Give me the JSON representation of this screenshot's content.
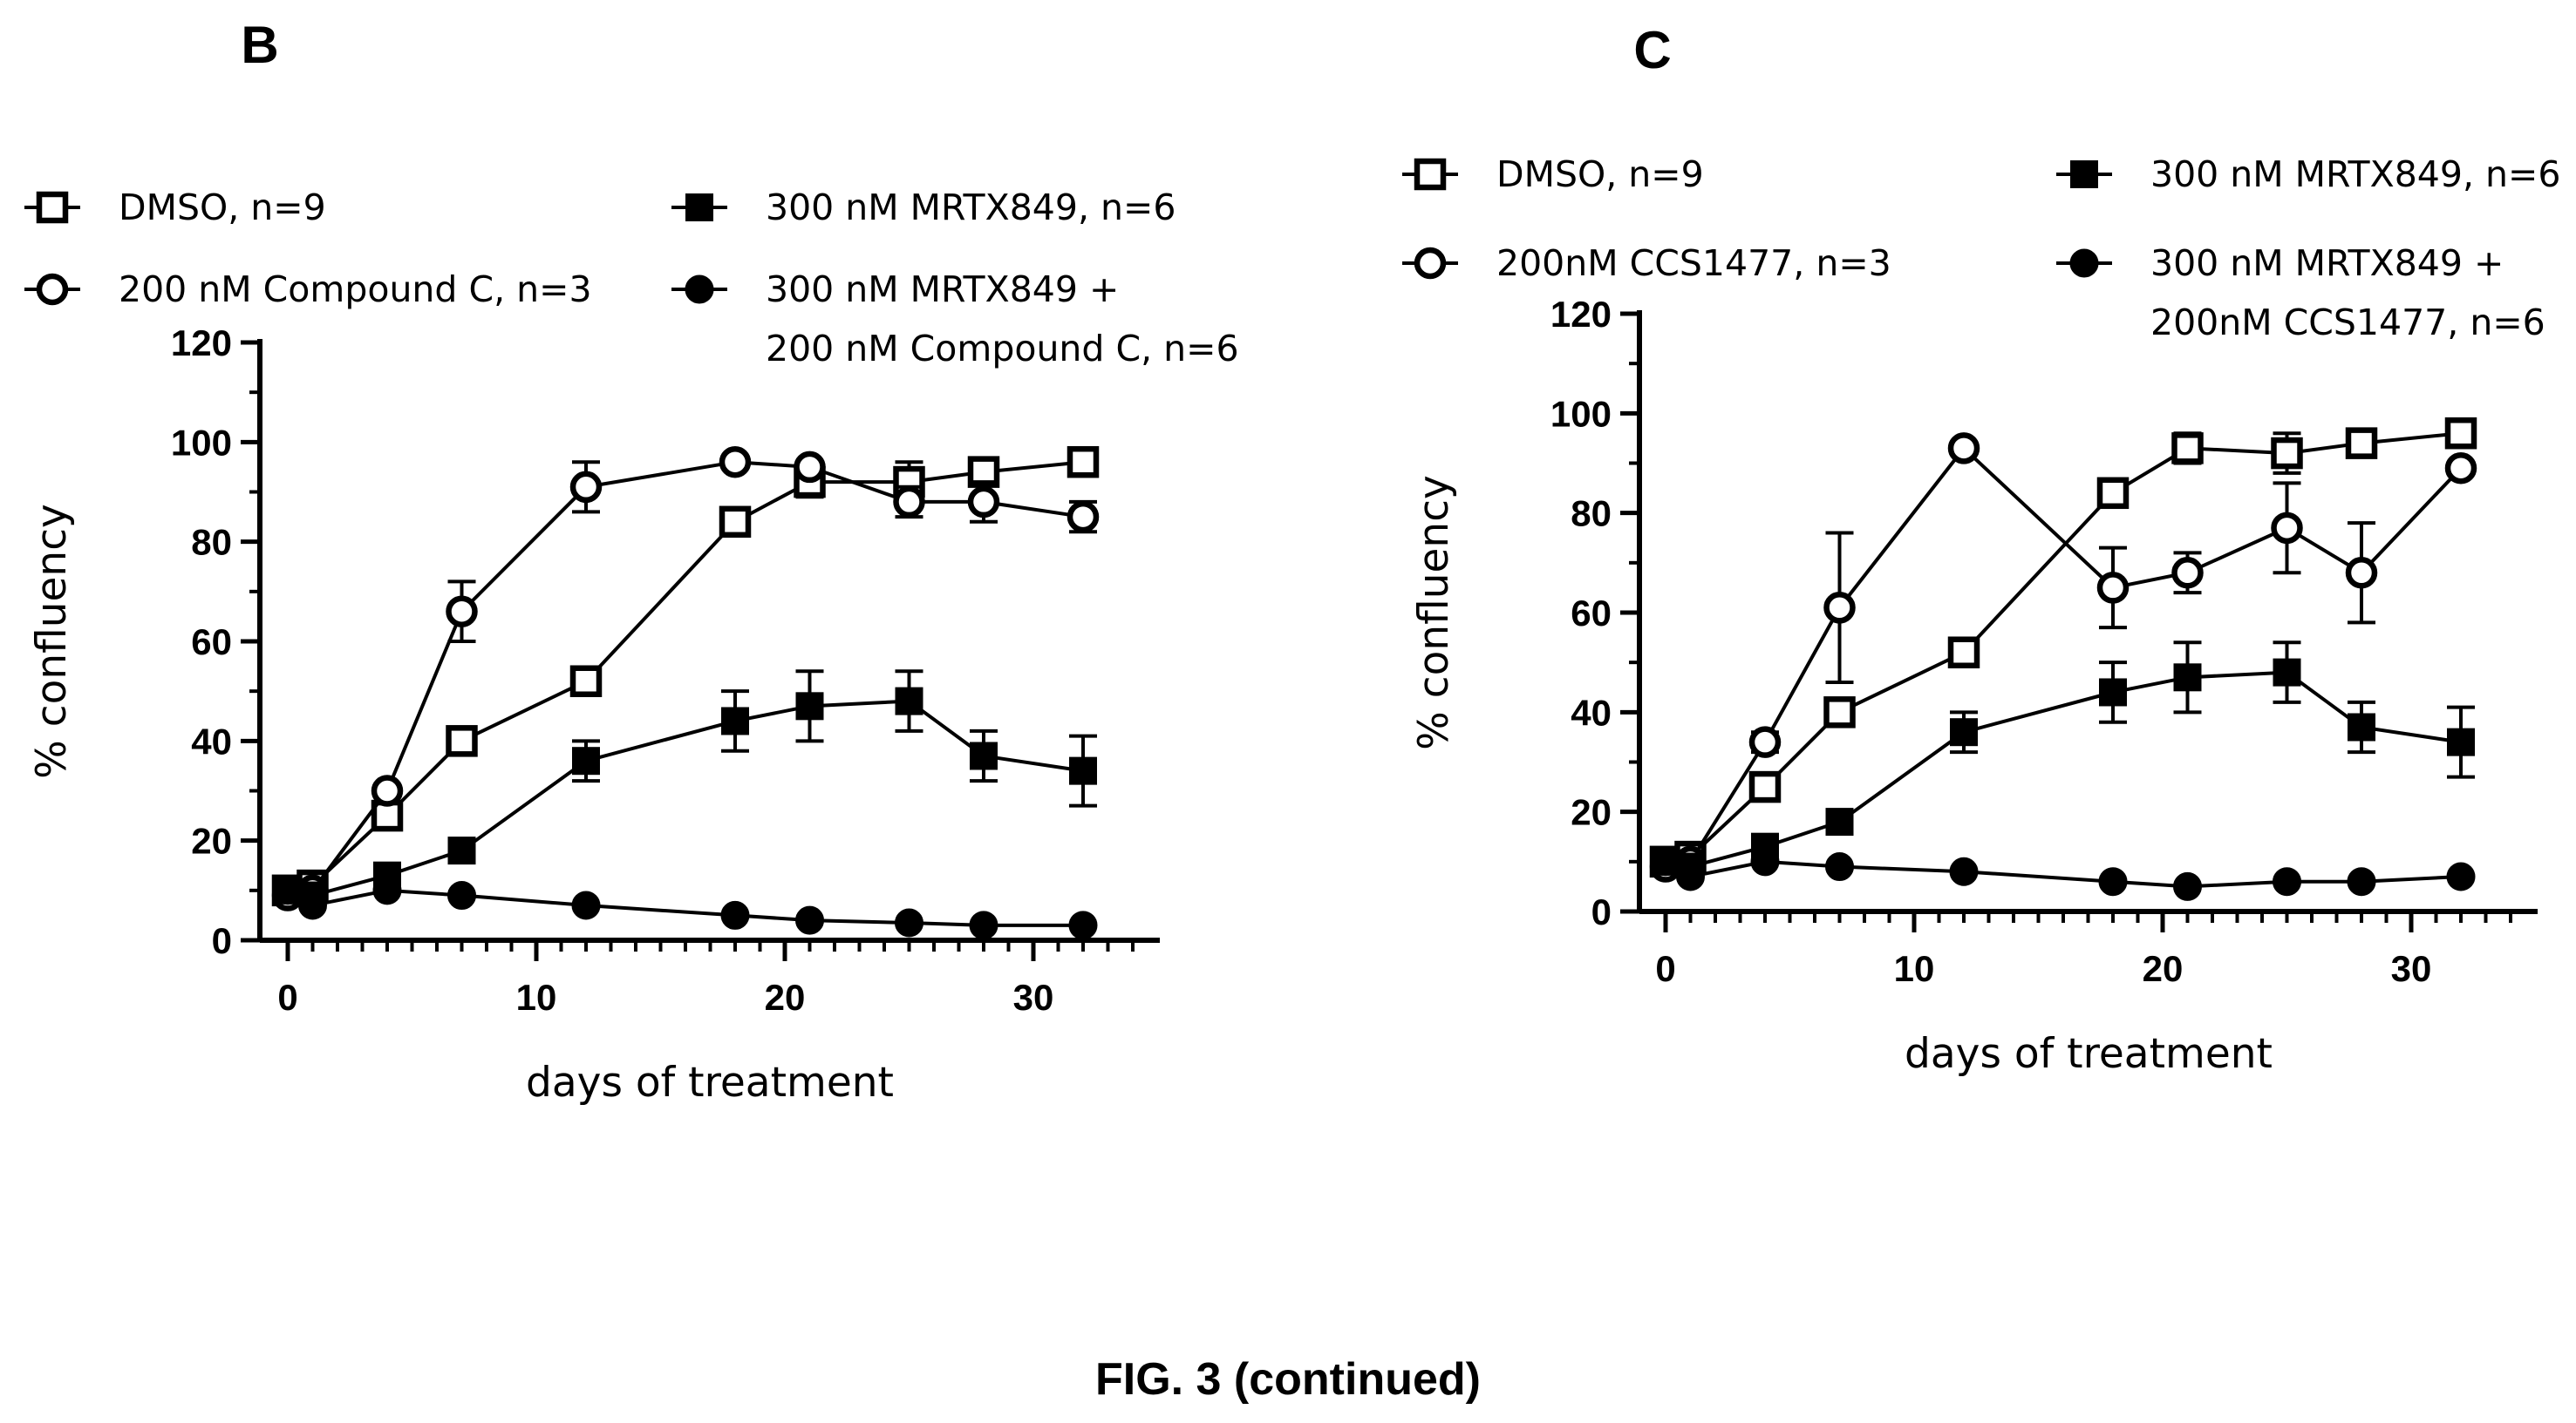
{
  "figure": {
    "caption": "FIG. 3 (continued)"
  },
  "chart_data": [
    {
      "panel": "B",
      "type": "line",
      "title": "",
      "xlabel": "days of treatment",
      "ylabel": "% confluency",
      "xlim": [
        -1,
        35
      ],
      "ylim": [
        0,
        120
      ],
      "xticks": [
        0,
        10,
        20,
        30
      ],
      "yticks": [
        0,
        20,
        40,
        60,
        80,
        100,
        120
      ],
      "x_minor_step": 1,
      "legend": "top",
      "error_bars": true,
      "series": [
        {
          "name": "DMSO, n=9",
          "marker": "open-square",
          "x": [
            0,
            1,
            4,
            7,
            12,
            18,
            21,
            25,
            28,
            32
          ],
          "y": [
            10,
            11,
            25,
            40,
            52,
            84,
            92,
            92,
            94,
            96
          ],
          "err": [
            0,
            0,
            0,
            0,
            0,
            2,
            3,
            4,
            2,
            1
          ]
        },
        {
          "name": "200 nM Compound C, n=3",
          "marker": "open-circle",
          "x": [
            0,
            1,
            4,
            7,
            12,
            18,
            21,
            25,
            28,
            32
          ],
          "y": [
            9,
            10,
            30,
            66,
            91,
            96,
            95,
            88,
            88,
            85
          ],
          "err": [
            0,
            0,
            0,
            6,
            5,
            0,
            0,
            3,
            4,
            3
          ]
        },
        {
          "name": "300 nM MRTX849, n=6",
          "marker": "filled-square",
          "x": [
            0,
            1,
            4,
            7,
            12,
            18,
            21,
            25,
            28,
            32
          ],
          "y": [
            10,
            9,
            13,
            18,
            36,
            44,
            47,
            48,
            37,
            34
          ],
          "err": [
            0,
            0,
            0,
            0,
            4,
            6,
            7,
            6,
            5,
            7
          ]
        },
        {
          "name": "300 nM MRTX849 + 200 nM Compound C, n=6",
          "legend_lines": [
            "300 nM MRTX849 +",
            "200 nM Compound C, n=6"
          ],
          "marker": "filled-circle",
          "x": [
            0,
            1,
            4,
            7,
            12,
            18,
            21,
            25,
            28,
            32
          ],
          "y": [
            10,
            7,
            10,
            9,
            7,
            5,
            4,
            3.5,
            3,
            3
          ],
          "err": [
            0,
            0,
            0,
            0,
            0,
            0,
            0,
            0,
            0,
            0
          ]
        }
      ]
    },
    {
      "panel": "C",
      "type": "line",
      "title": "",
      "xlabel": "days of treatment",
      "ylabel": "% confluency",
      "xlim": [
        -1,
        35
      ],
      "ylim": [
        0,
        120
      ],
      "xticks": [
        0,
        10,
        20,
        30
      ],
      "yticks": [
        0,
        20,
        40,
        60,
        80,
        100,
        120
      ],
      "x_minor_step": 1,
      "legend": "top",
      "error_bars": true,
      "series": [
        {
          "name": "DMSO, n=9",
          "marker": "open-square",
          "x": [
            0,
            1,
            4,
            7,
            12,
            18,
            21,
            25,
            28,
            32
          ],
          "y": [
            10,
            11,
            25,
            40,
            52,
            84,
            93,
            92,
            94,
            96
          ],
          "err": [
            0,
            0,
            0,
            0,
            0,
            2,
            3,
            4,
            2,
            1
          ]
        },
        {
          "name": "200nM CCS1477, n=3",
          "marker": "open-circle",
          "x": [
            0,
            1,
            4,
            7,
            12,
            18,
            21,
            25,
            28,
            32
          ],
          "y": [
            9,
            10,
            34,
            61,
            93,
            65,
            68,
            77,
            68,
            89
          ],
          "err": [
            0,
            0,
            2,
            15,
            0,
            8,
            4,
            9,
            10,
            0
          ]
        },
        {
          "name": "300 nM MRTX849, n=6",
          "marker": "filled-square",
          "x": [
            0,
            1,
            4,
            7,
            12,
            18,
            21,
            25,
            28,
            32
          ],
          "y": [
            10,
            9,
            13,
            18,
            36,
            44,
            47,
            48,
            37,
            34
          ],
          "err": [
            0,
            0,
            0,
            0,
            4,
            6,
            7,
            6,
            5,
            7
          ]
        },
        {
          "name": "300 nM MRTX849 + 200nM CCS1477, n=6",
          "legend_lines": [
            "300 nM MRTX849 +",
            "200nM CCS1477, n=6"
          ],
          "marker": "filled-circle",
          "x": [
            0,
            1,
            4,
            7,
            12,
            18,
            21,
            25,
            28,
            32
          ],
          "y": [
            10,
            7,
            10,
            9,
            8,
            6,
            5,
            6,
            6,
            7
          ],
          "err": [
            0,
            0,
            0,
            0,
            0,
            0,
            0,
            0,
            0,
            0
          ]
        }
      ]
    }
  ]
}
